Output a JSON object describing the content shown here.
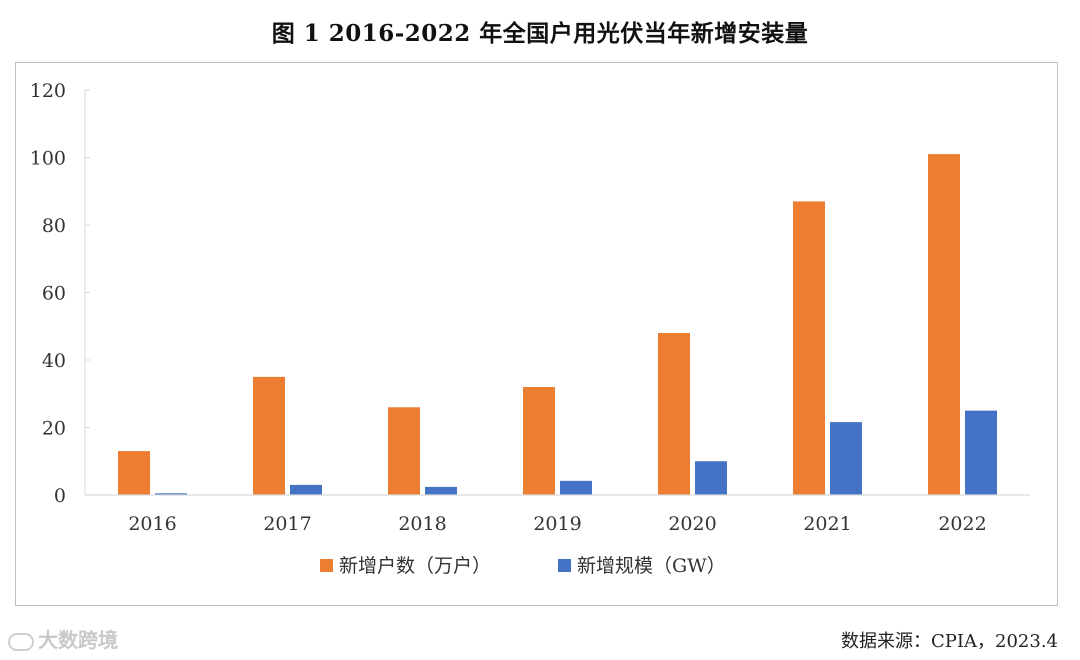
{
  "chart_data": {
    "type": "bar",
    "title": "图 1 2016-2022 年全国户用光伏当年新增安装量",
    "categories": [
      "2016",
      "2017",
      "2018",
      "2019",
      "2020",
      "2021",
      "2022"
    ],
    "series": [
      {
        "name": "新增户数（万户）",
        "color": "#ED7D31",
        "values": [
          13,
          35,
          26,
          32,
          48,
          87,
          101
        ]
      },
      {
        "name": "新增规模（GW）",
        "color": "#4472C4",
        "values": [
          0.5,
          3,
          2.4,
          4.2,
          10,
          21.6,
          25
        ]
      }
    ],
    "yticks": [
      "0",
      "20",
      "40",
      "60",
      "80",
      "100",
      "120"
    ],
    "ylim": [
      0,
      120
    ],
    "grid": false,
    "legend_position": "bottom"
  },
  "source": "数据来源：CPIA，2023.4",
  "watermark": "大数跨境"
}
